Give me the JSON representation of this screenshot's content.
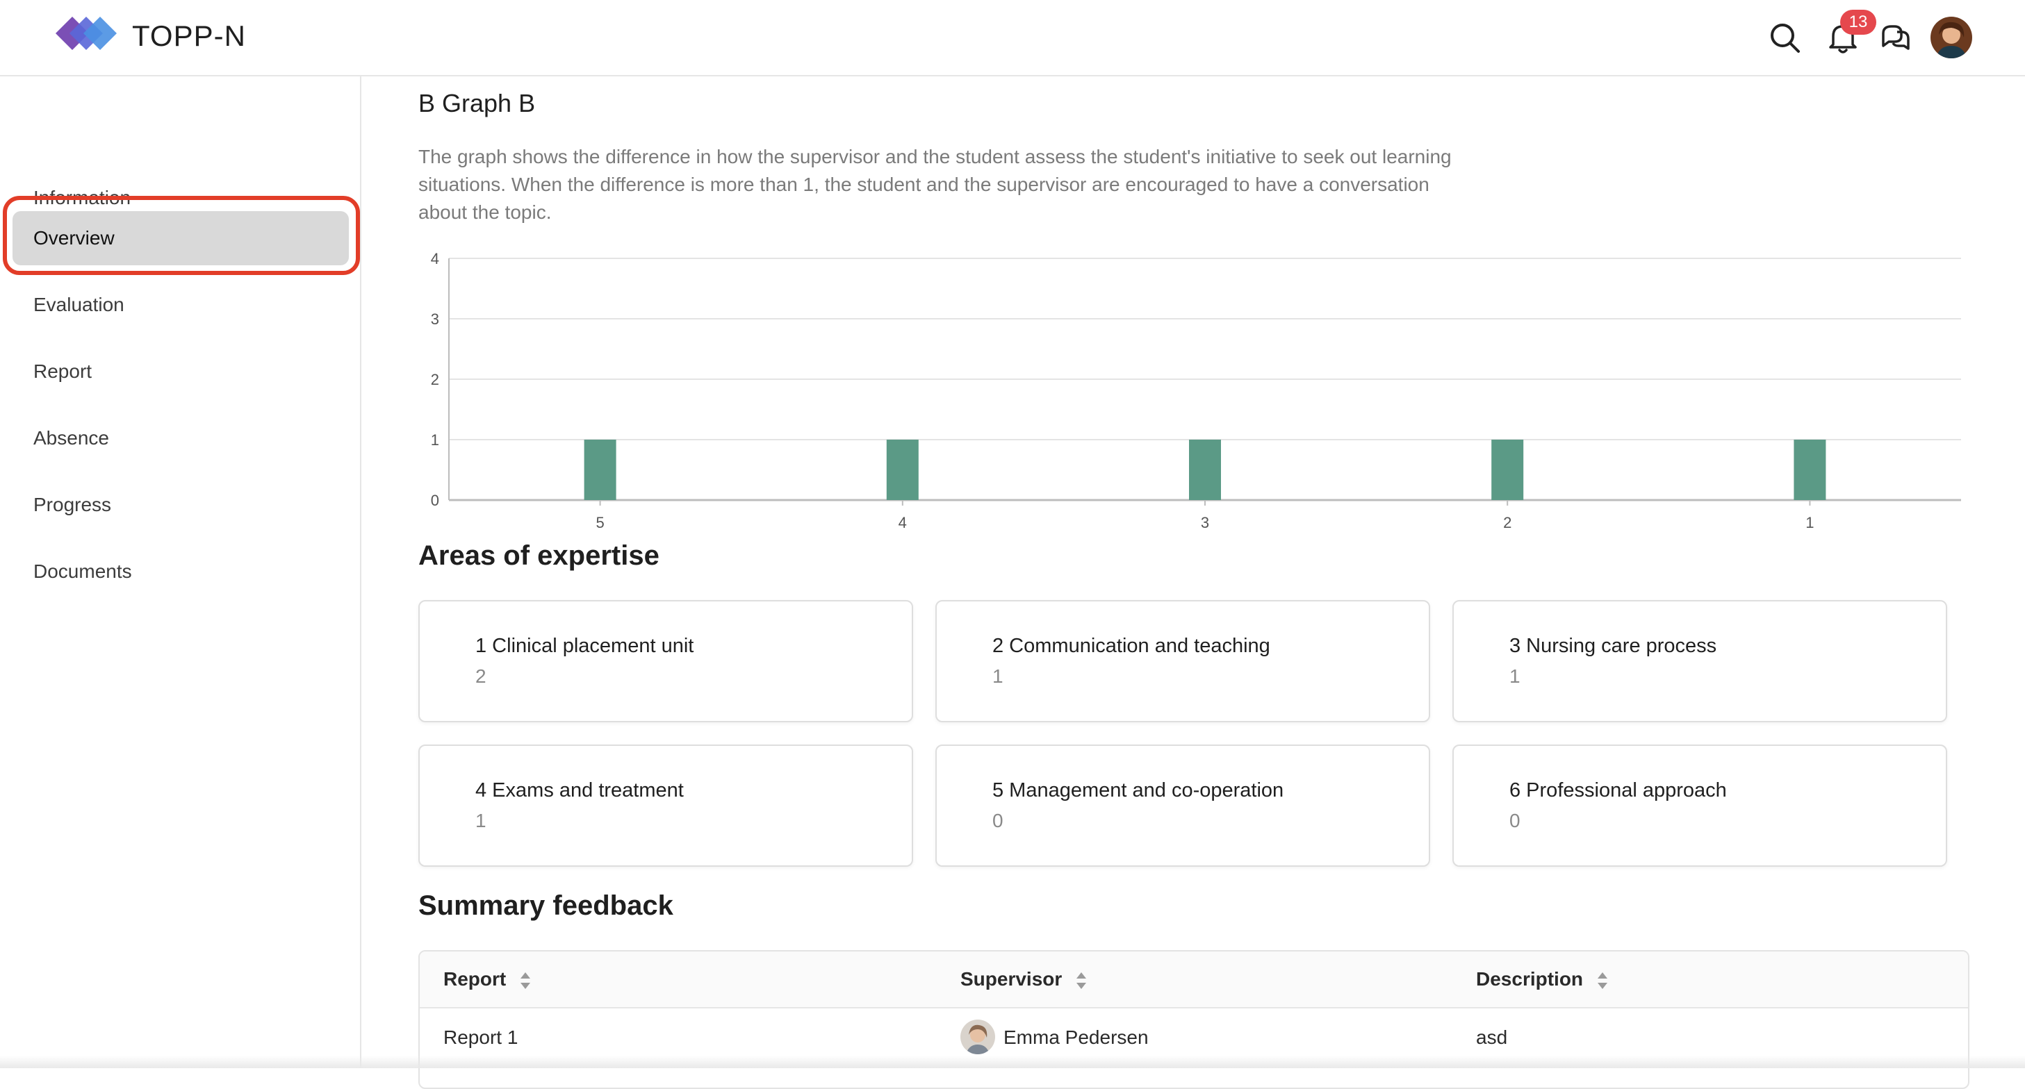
{
  "app": {
    "name": "TOPP-N",
    "notification_count": "13"
  },
  "header_icons": [
    "search-icon",
    "bell-icon",
    "chat-icon",
    "avatar"
  ],
  "sidebar": {
    "items": [
      {
        "label": "Information",
        "active": false
      },
      {
        "label": "Overview",
        "active": true
      },
      {
        "label": "Evaluation",
        "active": false
      },
      {
        "label": "Report",
        "active": false
      },
      {
        "label": "Absence",
        "active": false
      },
      {
        "label": "Progress",
        "active": false
      },
      {
        "label": "Documents",
        "active": false
      }
    ]
  },
  "graph": {
    "title": "B Graph B",
    "description": "The graph shows the difference in how the supervisor and the student assess the student's initiative to seek out learning situations. When the difference is more than 1, the student and the supervisor are encouraged to have a conversation about the topic."
  },
  "chart_data": {
    "type": "bar",
    "categories": [
      "5",
      "4",
      "3",
      "2",
      "1"
    ],
    "values": [
      1,
      1,
      1,
      1,
      1
    ],
    "ylim": [
      0,
      4
    ],
    "yticks": [
      "0",
      "1",
      "2",
      "3",
      "4"
    ],
    "grid": true,
    "bar_color": "#5b9a86"
  },
  "areas": {
    "title": "Areas of expertise",
    "cards": [
      {
        "title": "1 Clinical placement unit",
        "count": "2"
      },
      {
        "title": "2 Communication and teaching",
        "count": "1"
      },
      {
        "title": "3 Nursing care process",
        "count": "1"
      },
      {
        "title": "4 Exams and treatment",
        "count": "1"
      },
      {
        "title": "5 Management and co-operation",
        "count": "0"
      },
      {
        "title": "6 Professional approach",
        "count": "0"
      }
    ]
  },
  "summary": {
    "title": "Summary feedback",
    "columns": [
      "Report",
      "Supervisor",
      "Description"
    ],
    "rows": [
      {
        "report": "Report 1",
        "supervisor": "Emma Pedersen",
        "description": "asd"
      }
    ]
  },
  "colors": {
    "accent_ring": "#e23d28",
    "bar": "#5b9a86",
    "badge": "#e5484d"
  }
}
